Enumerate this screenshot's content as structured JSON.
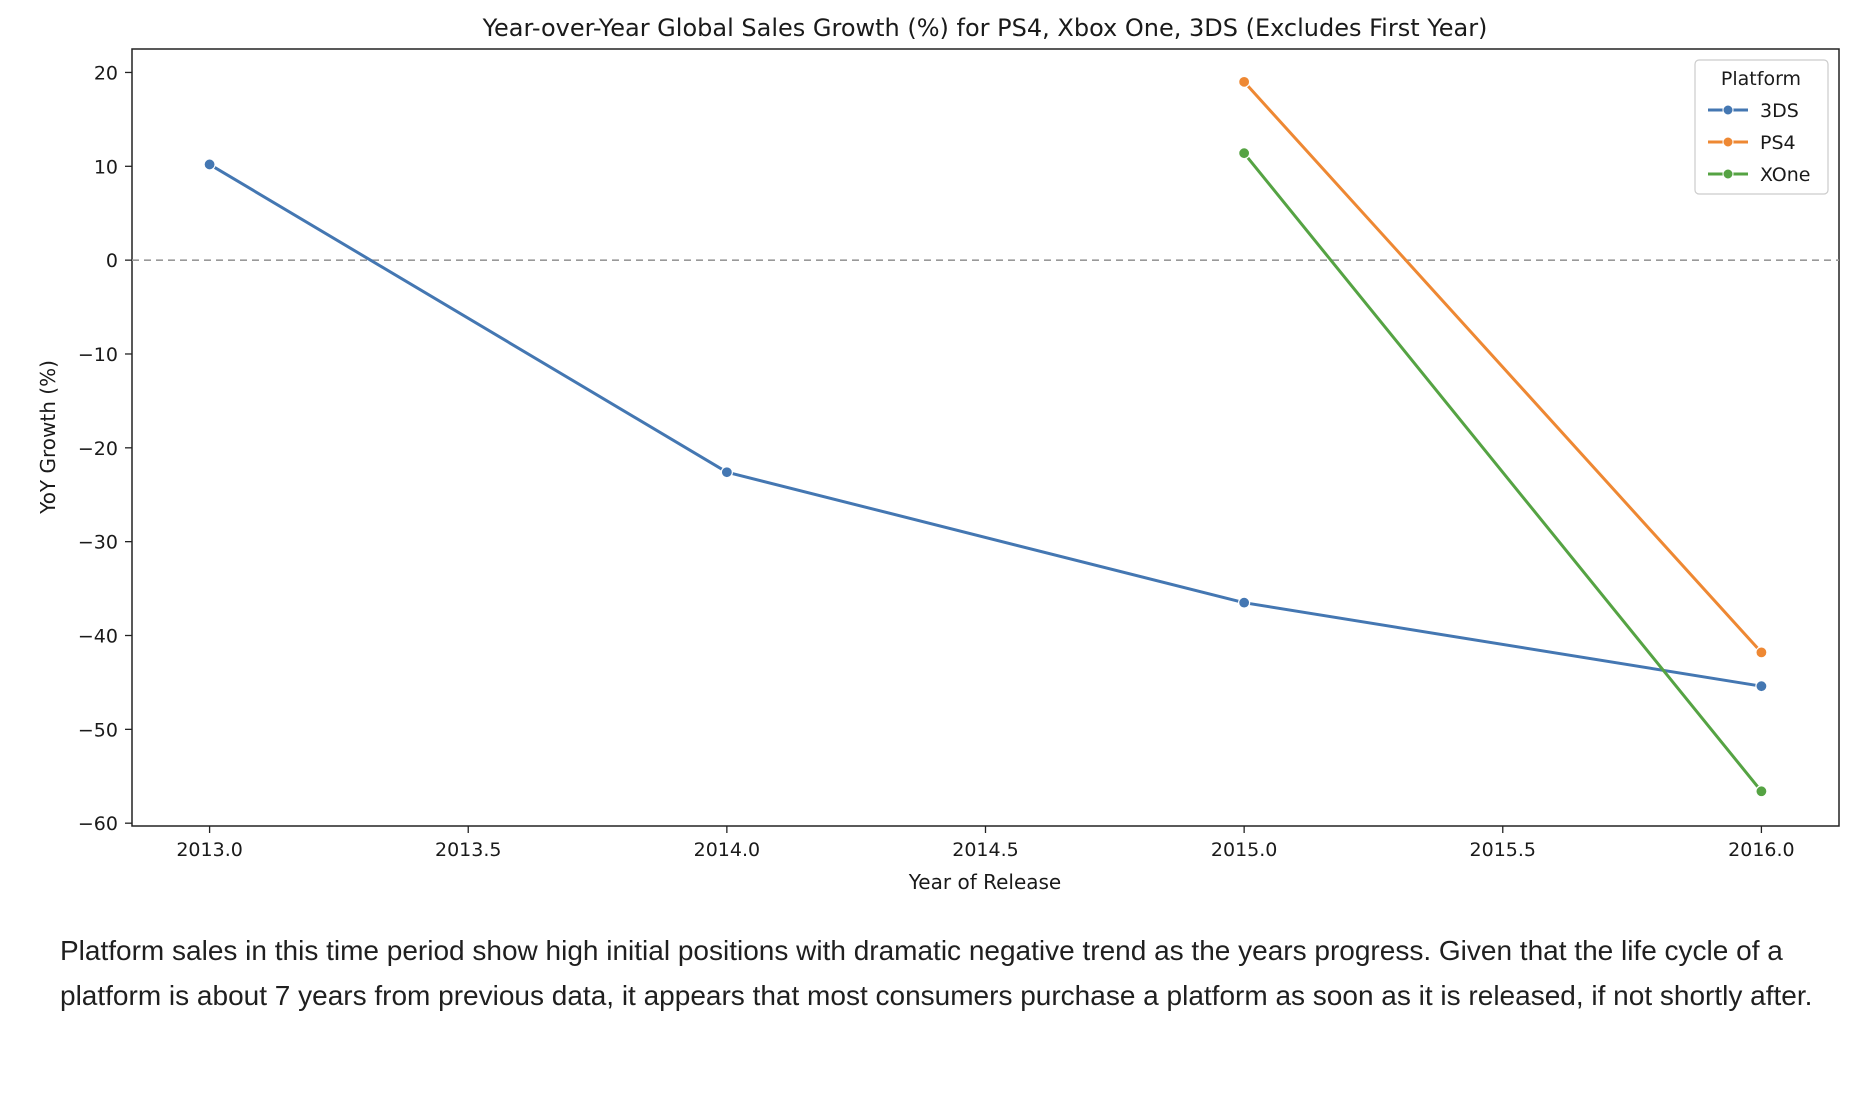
{
  "chart_data": {
    "type": "line",
    "title": "Year-over-Year Global Sales Growth (%) for PS4, Xbox One, 3DS (Excludes First Year)",
    "xlabel": "Year of Release",
    "ylabel": "YoY Growth (%)",
    "xlim": [
      2012.85,
      2016.15
    ],
    "ylim": [
      -60.3,
      22.5
    ],
    "x_ticks": [
      2013.0,
      2013.5,
      2014.0,
      2014.5,
      2015.0,
      2015.5,
      2016.0
    ],
    "x_tick_labels": [
      "2013.0",
      "2013.5",
      "2014.0",
      "2014.5",
      "2015.0",
      "2015.5",
      "2016.0"
    ],
    "y_ticks": [
      20,
      10,
      0,
      -10,
      -20,
      -30,
      -40,
      -50,
      -60
    ],
    "y_tick_labels": [
      "20",
      "10",
      "0",
      "−10",
      "−20",
      "−30",
      "−40",
      "−50",
      "−60"
    ],
    "reference_line": {
      "y": 0,
      "style": "dashed",
      "color": "#999999"
    },
    "grid": false,
    "legend": {
      "title": "Platform",
      "placement": "top-right"
    },
    "series": [
      {
        "name": "3DS",
        "color": "#4477b2",
        "x": [
          2013,
          2014,
          2015,
          2016
        ],
        "y": [
          10.2,
          -22.6,
          -36.5,
          -45.4
        ]
      },
      {
        "name": "PS4",
        "color": "#ee8833",
        "x": [
          2015,
          2016
        ],
        "y": [
          19.0,
          -41.8
        ]
      },
      {
        "name": "XOne",
        "color": "#55a343",
        "x": [
          2015,
          2016
        ],
        "y": [
          11.4,
          -56.6
        ]
      }
    ]
  },
  "caption": "Platform sales in this time period show high initial positions with dramatic negative trend as the years progress. Given that the life cycle of a platform is about 7 years from previous data, it appears that most consumers purchase a platform as soon as it is released, if not shortly after."
}
